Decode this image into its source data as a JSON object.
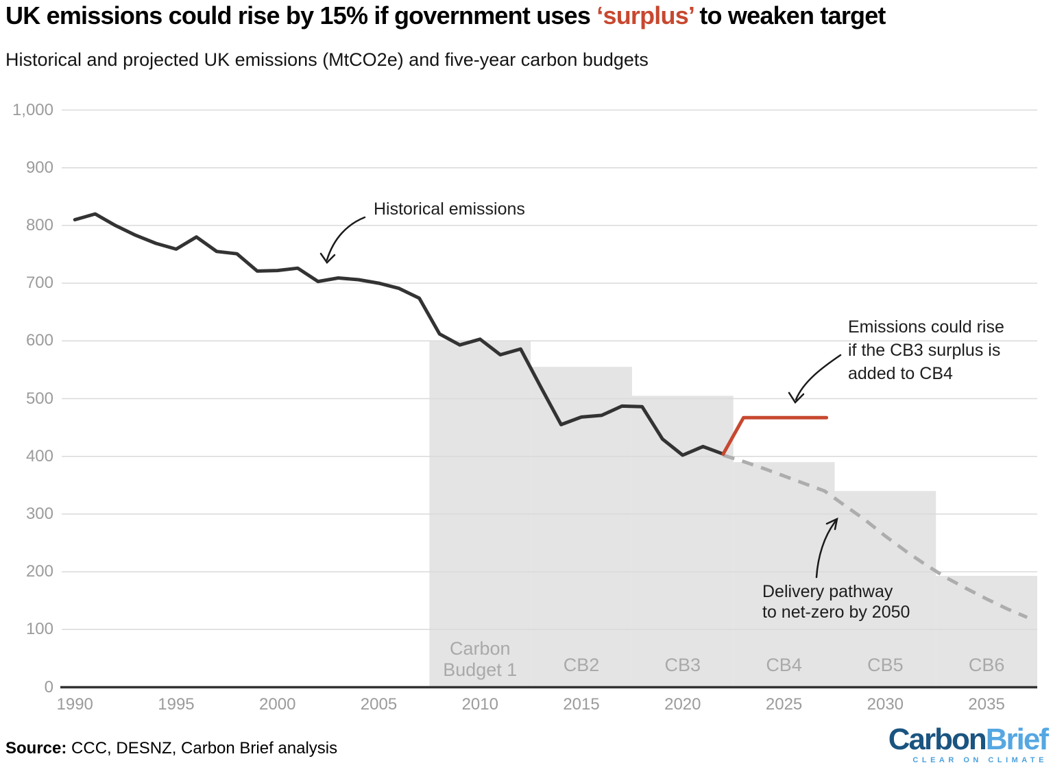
{
  "header": {
    "title_prefix": "UK emissions could rise by 15% if government uses ",
    "title_highlight": "‘surplus’",
    "title_suffix": " to weaken target",
    "subtitle": "Historical and projected UK emissions (MtCO2e) and five-year carbon budgets"
  },
  "annotations": {
    "historical": {
      "lines": [
        "Historical emissions"
      ]
    },
    "surplus": {
      "lines": [
        "Emissions could rise",
        "if the CB3 surplus is",
        "added to CB4"
      ]
    },
    "pathway": {
      "lines": [
        "Delivery pathway",
        "to net-zero by 2050"
      ]
    }
  },
  "footer": {
    "source_label": "Source:",
    "source_text": " CCC, DESNZ, Carbon Brief analysis",
    "logo_part1": "Carbon",
    "logo_part2": "Brief",
    "logo_tagline": "CLEAR ON CLIMATE"
  },
  "colors": {
    "historical_line": "#333333",
    "surplus_line": "#c7482f",
    "pathway_line": "#adadad",
    "budget_fill": "#e4e4e4",
    "gridline": "#d9d9d9",
    "axis_line": "#333333",
    "tick_text": "#9b9b9b",
    "budget_label_text": "#a9a9a9",
    "title_highlight": "#c7482f",
    "logo_dark_blue": "#1a5480",
    "logo_light_blue": "#55a7e2"
  },
  "chart_data": {
    "type": "line",
    "title": "UK emissions could rise by 15% if government uses 'surplus' to weaken target",
    "subtitle": "Historical and projected UK emissions (MtCO2e) and five-year carbon budgets",
    "units": "MtCO2e",
    "ylim": [
      0,
      1000
    ],
    "xlim": [
      1989.35,
      2037.5
    ],
    "grid": "horizontal gridlines every 100, legend none (direct annotations)",
    "y_ticks": [
      {
        "v": 0,
        "label": "0"
      },
      {
        "v": 100,
        "label": "100"
      },
      {
        "v": 200,
        "label": "200"
      },
      {
        "v": 300,
        "label": "300"
      },
      {
        "v": 400,
        "label": "400"
      },
      {
        "v": 500,
        "label": "500"
      },
      {
        "v": 600,
        "label": "600"
      },
      {
        "v": 700,
        "label": "700"
      },
      {
        "v": 800,
        "label": "800"
      },
      {
        "v": 900,
        "label": "900"
      },
      {
        "v": 1000,
        "label": "1,000"
      }
    ],
    "x_ticks": [
      1990,
      1995,
      2000,
      2005,
      2010,
      2015,
      2020,
      2025,
      2030,
      2035
    ],
    "series": [
      {
        "name": "Historical emissions",
        "style": "solid",
        "color": "#333333",
        "years": [
          1990,
          1991,
          1992,
          1993,
          1994,
          1995,
          1996,
          1997,
          1998,
          1999,
          2000,
          2001,
          2002,
          2003,
          2004,
          2005,
          2006,
          2007,
          2008,
          2009,
          2010,
          2011,
          2012,
          2013,
          2014,
          2015,
          2016,
          2017,
          2018,
          2019,
          2020,
          2021,
          2022
        ],
        "values": [
          810,
          820,
          800,
          783,
          769,
          759,
          780,
          755,
          751,
          721,
          722,
          726,
          703,
          709,
          706,
          700,
          691,
          674,
          612,
          593,
          603,
          576,
          586,
          520,
          455,
          468,
          471,
          487,
          486,
          430,
          402,
          417,
          404
        ]
      },
      {
        "name": "Emissions could rise if the CB3 surplus is added to CB4",
        "style": "solid",
        "color": "#c7482f",
        "years": [
          2022,
          2023,
          2027.1
        ],
        "values": [
          404,
          467,
          467
        ]
      },
      {
        "name": "Delivery pathway to net-zero by 2050",
        "style": "dashed",
        "color": "#adadad",
        "years": [
          2022,
          2023,
          2024,
          2025,
          2026,
          2027,
          2028,
          2029,
          2030,
          2031,
          2032,
          2033,
          2034,
          2035,
          2036,
          2037
        ],
        "values": [
          402,
          391,
          379,
          366,
          353,
          340,
          315,
          290,
          262,
          236,
          212,
          190,
          171,
          153,
          136,
          121
        ]
      }
    ],
    "carbon_budgets": [
      {
        "label_lines": [
          "Carbon",
          "Budget 1"
        ],
        "start": 2007.5,
        "end": 2012.5,
        "level": 600
      },
      {
        "label_lines": [
          "CB2"
        ],
        "start": 2012.5,
        "end": 2017.5,
        "level": 555
      },
      {
        "label_lines": [
          "CB3"
        ],
        "start": 2017.5,
        "end": 2022.5,
        "level": 505
      },
      {
        "label_lines": [
          "CB4"
        ],
        "start": 2022.5,
        "end": 2027.5,
        "level": 390
      },
      {
        "label_lines": [
          "CB5"
        ],
        "start": 2027.5,
        "end": 2032.5,
        "level": 340
      },
      {
        "label_lines": [
          "CB6"
        ],
        "start": 2032.5,
        "end": 2037.5,
        "level": 193
      }
    ]
  }
}
